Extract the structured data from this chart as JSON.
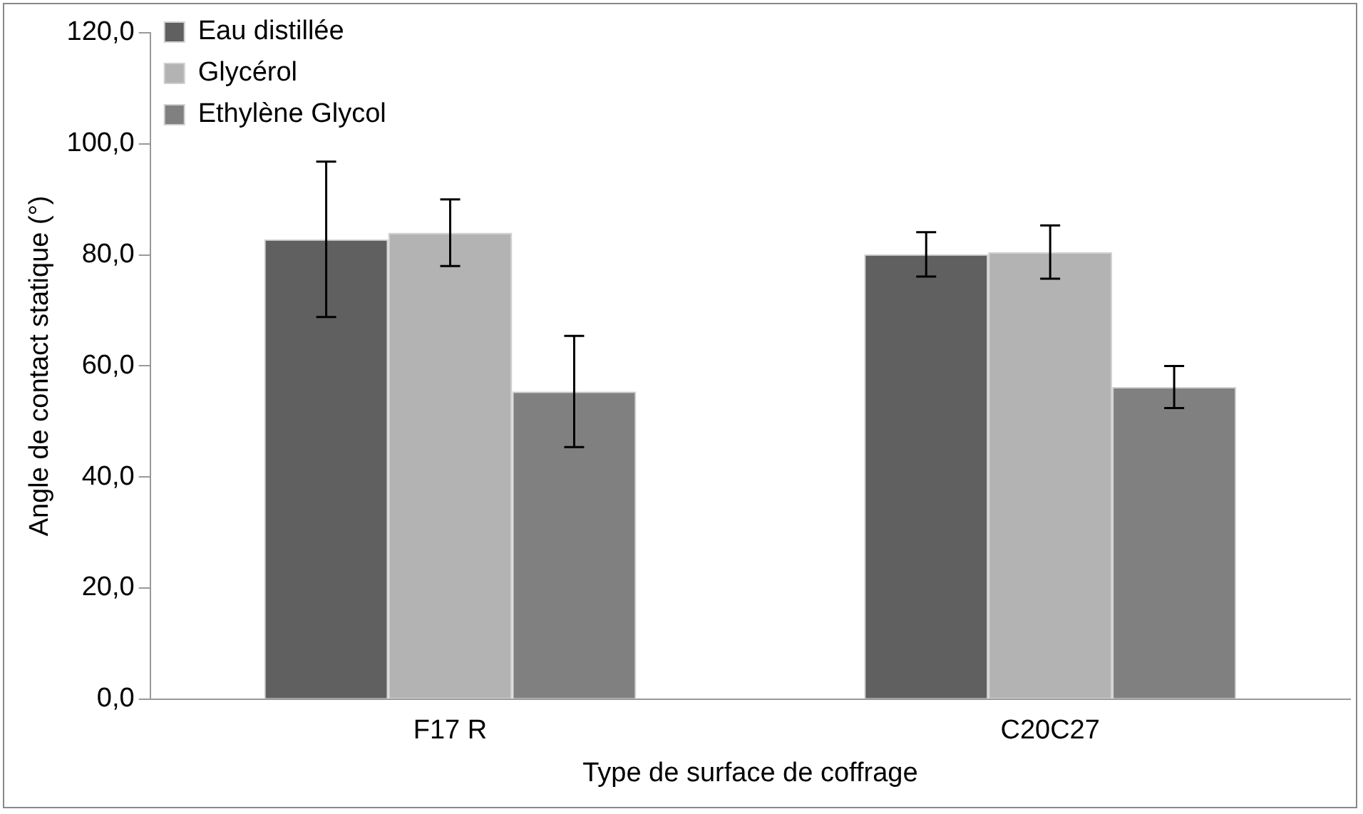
{
  "chart_data": {
    "type": "bar",
    "xlabel": "Type de surface de coffrage",
    "ylabel": "Angle de contact statique (°)",
    "categories": [
      "F17 R",
      "C20C27"
    ],
    "series": [
      {
        "name": "Eau distillée",
        "color": "#606060",
        "values": [
          82.8,
          80.1
        ],
        "errors": [
          14,
          4
        ]
      },
      {
        "name": "Glycérol",
        "color": "#b3b3b3",
        "values": [
          84,
          80.5
        ],
        "errors": [
          6,
          4.8
        ]
      },
      {
        "name": "Ethylène Glycol",
        "color": "#808080",
        "values": [
          55.4,
          56.2
        ],
        "errors": [
          10,
          3.8
        ]
      }
    ],
    "ylim": [
      0,
      120
    ],
    "yticks": [
      {
        "value": 0,
        "label": "0,0"
      },
      {
        "value": 20,
        "label": "20,0"
      },
      {
        "value": 40,
        "label": "40,0"
      },
      {
        "value": 60,
        "label": "60,0"
      },
      {
        "value": 80,
        "label": "80,0"
      },
      {
        "value": 100,
        "label": "100,0"
      },
      {
        "value": 120,
        "label": "120,0"
      }
    ],
    "grid": false,
    "legend": "top left"
  }
}
